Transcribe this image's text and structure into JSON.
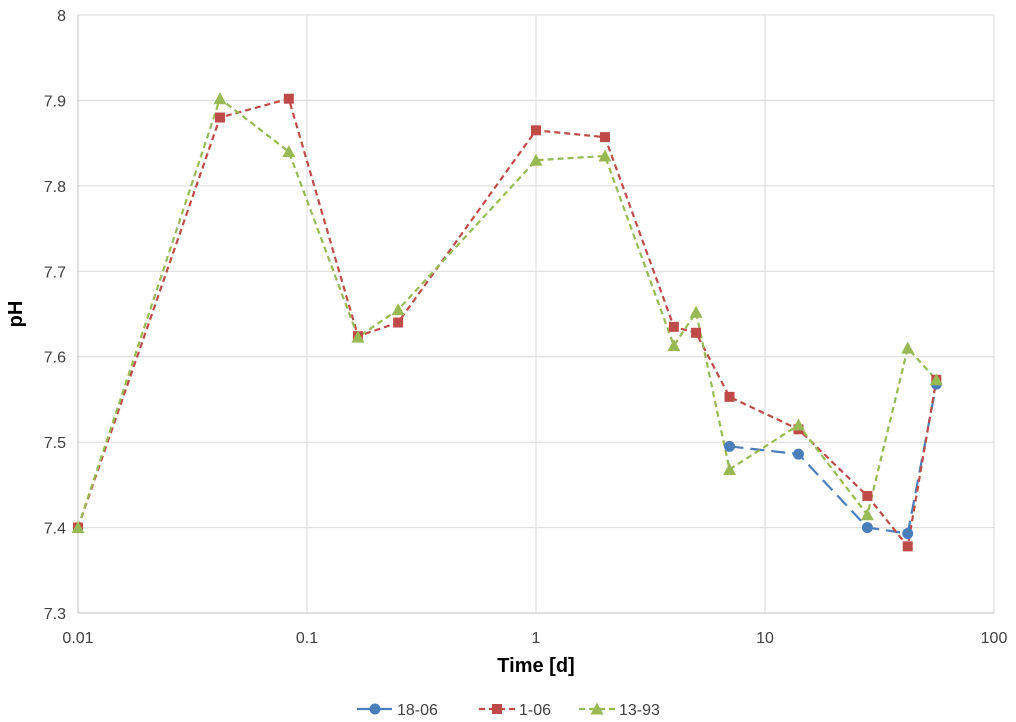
{
  "chart_data": {
    "type": "line",
    "title": "",
    "xlabel": "Time [d]",
    "ylabel": "pH",
    "xscale": "log",
    "xlim": [
      0.01,
      100
    ],
    "ylim": [
      7.3,
      8.0
    ],
    "x_ticks": [
      0.01,
      0.1,
      1,
      10,
      100
    ],
    "x_tick_labels": [
      "0.01",
      "0.1",
      "1",
      "10",
      "100"
    ],
    "y_ticks": [
      7.3,
      7.4,
      7.5,
      7.6,
      7.7,
      7.8,
      7.9,
      8.0
    ],
    "y_tick_labels": [
      "7.3",
      "7.4",
      "7.5",
      "7.6",
      "7.7",
      "7.8",
      "7.9",
      "8"
    ],
    "grid": true,
    "legend_position": "bottom",
    "series": [
      {
        "name": "18-06",
        "color": "#4a7ebb",
        "marker": "circle",
        "line_style": "long-dash",
        "x": [
          7,
          14,
          28,
          42,
          56
        ],
        "y": [
          7.495,
          7.486,
          7.4,
          7.393,
          7.568
        ]
      },
      {
        "name": "1-06",
        "color": "#be4b48",
        "marker": "square",
        "line_style": "dash",
        "x": [
          0.01,
          0.0417,
          0.0833,
          0.167,
          0.25,
          1,
          2,
          4,
          5,
          7,
          14,
          28,
          42,
          56
        ],
        "y": [
          7.4,
          7.88,
          7.902,
          7.624,
          7.64,
          7.865,
          7.857,
          7.635,
          7.628,
          7.553,
          7.515,
          7.437,
          7.378,
          7.573
        ]
      },
      {
        "name": "13-93",
        "color": "#98b954",
        "marker": "triangle",
        "line_style": "dash",
        "x": [
          0.01,
          0.0417,
          0.0833,
          0.167,
          0.25,
          1,
          2,
          4,
          5,
          7,
          14,
          28,
          42,
          56
        ],
        "y": [
          7.4,
          7.902,
          7.84,
          7.623,
          7.655,
          7.83,
          7.835,
          7.613,
          7.652,
          7.468,
          7.52,
          7.415,
          7.61,
          7.573
        ]
      }
    ]
  }
}
